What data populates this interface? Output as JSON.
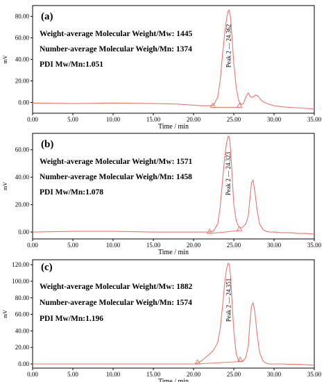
{
  "chart_data": [
    {
      "type": "line",
      "panel_label": "(a)",
      "xlabel": "Time / min",
      "ylabel": "mV",
      "xlim": [
        0,
        35
      ],
      "ylim": [
        -10,
        90
      ],
      "x_ticks": [
        "0.00",
        "5.00",
        "10.00",
        "15.00",
        "20.00",
        "25.00",
        "30.00",
        "35.00"
      ],
      "y_ticks": [
        {
          "v": 0,
          "label": "0.00"
        },
        {
          "v": 20,
          "label": "20.00"
        },
        {
          "v": 40,
          "label": "40.00"
        },
        {
          "v": 60,
          "label": "60.00"
        },
        {
          "v": 80,
          "label": "80.00"
        }
      ],
      "annotations": [
        "Weight-average Molecular Weight/Mw: 1445",
        "Number-average Molecular Weigh/Mn: 1374",
        "PDI Mw/Mn:1.051"
      ],
      "peak_label": "Peak 2 — 24.362",
      "peak_x": 24.36,
      "line_color": "#e8776f",
      "series": [
        {
          "x": [
            0,
            5,
            10,
            15,
            18,
            20,
            21,
            22,
            22.5,
            23,
            23.3,
            23.6,
            23.9,
            24.1,
            24.3,
            24.45,
            24.6,
            24.8,
            25.0,
            25.3,
            25.6,
            25.9,
            26.2,
            26.5,
            26.8,
            27.1,
            27.4,
            27.7,
            28.0,
            28.4,
            28.8,
            29.3,
            30,
            31,
            32,
            33,
            34,
            35
          ],
          "values": [
            -0.5,
            -1,
            -0.5,
            -1,
            -1.5,
            -2.5,
            -3,
            -3,
            -2.5,
            5,
            20,
            45,
            66,
            78,
            85,
            86,
            78,
            58,
            36,
            14,
            2,
            -2,
            -1,
            5,
            9,
            5,
            5,
            7,
            6,
            2,
            0,
            -1.5,
            -3,
            -4,
            -4.5,
            -5,
            -5.5,
            -6
          ]
        }
      ],
      "baseline": {
        "x": [
          22.4,
          25.7
        ],
        "values": [
          -4.5,
          -4.5
        ]
      },
      "markers_x": [
        22.4,
        25.7
      ]
    },
    {
      "type": "line",
      "panel_label": "(b)",
      "xlabel": "Time / min",
      "ylabel": "mV",
      "xlim": [
        0,
        35
      ],
      "ylim": [
        -5,
        72
      ],
      "x_ticks": [
        "0.00",
        "5.00",
        "10.00",
        "15.00",
        "20.00",
        "25.00",
        "30.00",
        "35.00"
      ],
      "y_ticks": [
        {
          "v": 0,
          "label": "0.00"
        },
        {
          "v": 20,
          "label": "20.00"
        },
        {
          "v": 40,
          "label": "40.00"
        },
        {
          "v": 60,
          "label": "60.00"
        }
      ],
      "annotations": [
        "Weight-average Molecular Weight/Mw: 1571",
        "Number-average Molecular Weigh/Mn: 1458",
        "PDI Mw/Mn:1.078"
      ],
      "peak_label": "Peak 2 — 24.323",
      "peak_x": 24.32,
      "line_color": "#e8776f",
      "series": [
        {
          "x": [
            0,
            5,
            10,
            15,
            18,
            20,
            21,
            22,
            22.5,
            23,
            23.3,
            23.6,
            23.9,
            24.1,
            24.3,
            24.45,
            24.6,
            24.8,
            25.0,
            25.3,
            25.6,
            25.9,
            26.2,
            26.5,
            26.8,
            27.0,
            27.2,
            27.4,
            27.6,
            27.9,
            28.2,
            28.6,
            29.0,
            29.5,
            30,
            31,
            32,
            33,
            34,
            35
          ],
          "values": [
            0,
            0.5,
            0.5,
            0,
            0,
            0,
            0,
            0,
            1,
            6,
            18,
            38,
            56,
            65,
            70,
            69,
            60,
            40,
            20,
            8,
            4,
            3,
            4,
            6,
            12,
            24,
            36,
            38,
            30,
            16,
            6,
            2,
            0.5,
            0,
            0,
            -0.5,
            -0.5,
            -1,
            -1,
            -1.5
          ]
        }
      ],
      "baseline": {
        "x": [
          22.0,
          25.7
        ],
        "values": [
          -1,
          1
        ]
      },
      "markers_x": [
        22.0,
        25.7
      ]
    },
    {
      "type": "line",
      "panel_label": "(c)",
      "xlabel": "Time / min",
      "ylabel": "mV",
      "xlim": [
        0,
        35
      ],
      "ylim": [
        -5,
        126
      ],
      "x_ticks": [
        "0.00",
        "5.00",
        "10.00",
        "15.00",
        "20.00",
        "25.00",
        "30.00",
        "35.00"
      ],
      "y_ticks": [
        {
          "v": 0,
          "label": "0.00"
        },
        {
          "v": 20,
          "label": "20.00"
        },
        {
          "v": 40,
          "label": "40.00"
        },
        {
          "v": 60,
          "label": "60.00"
        },
        {
          "v": 80,
          "label": "80.00"
        },
        {
          "v": 100,
          "label": "100.00"
        },
        {
          "v": 120,
          "label": "120.00"
        }
      ],
      "annotations": [
        "Weight-average Molecular Weight/Mw: 1882",
        "Number-average Molecular Weigh/Mn: 1574",
        "PDI Mw/Mn:1.196"
      ],
      "peak_label": "Peak 2 — 24.351",
      "peak_x": 24.35,
      "line_color": "#e8776f",
      "series": [
        {
          "x": [
            0,
            5,
            10,
            15,
            18,
            20,
            20.5,
            21,
            21.5,
            22,
            22.5,
            23,
            23.3,
            23.6,
            23.9,
            24.1,
            24.3,
            24.45,
            24.6,
            24.8,
            25.0,
            25.3,
            25.6,
            25.9,
            26.2,
            26.5,
            26.8,
            27.0,
            27.2,
            27.4,
            27.6,
            27.9,
            28.2,
            28.6,
            29.0,
            29.5,
            30,
            31,
            32,
            33,
            34,
            35
          ],
          "values": [
            0,
            0,
            0,
            0,
            0,
            0,
            1,
            4,
            8,
            12,
            17,
            26,
            42,
            70,
            100,
            115,
            122,
            120,
            105,
            72,
            40,
            12,
            4,
            3,
            4,
            8,
            22,
            50,
            70,
            74,
            64,
            36,
            14,
            4,
            1,
            0,
            0,
            0,
            -0.5,
            -0.5,
            -1,
            -1.5
          ]
        }
      ],
      "baseline": {
        "x": [
          20.5,
          25.8
        ],
        "values": [
          0,
          3
        ]
      },
      "markers_x": [
        20.5,
        25.8
      ]
    }
  ]
}
